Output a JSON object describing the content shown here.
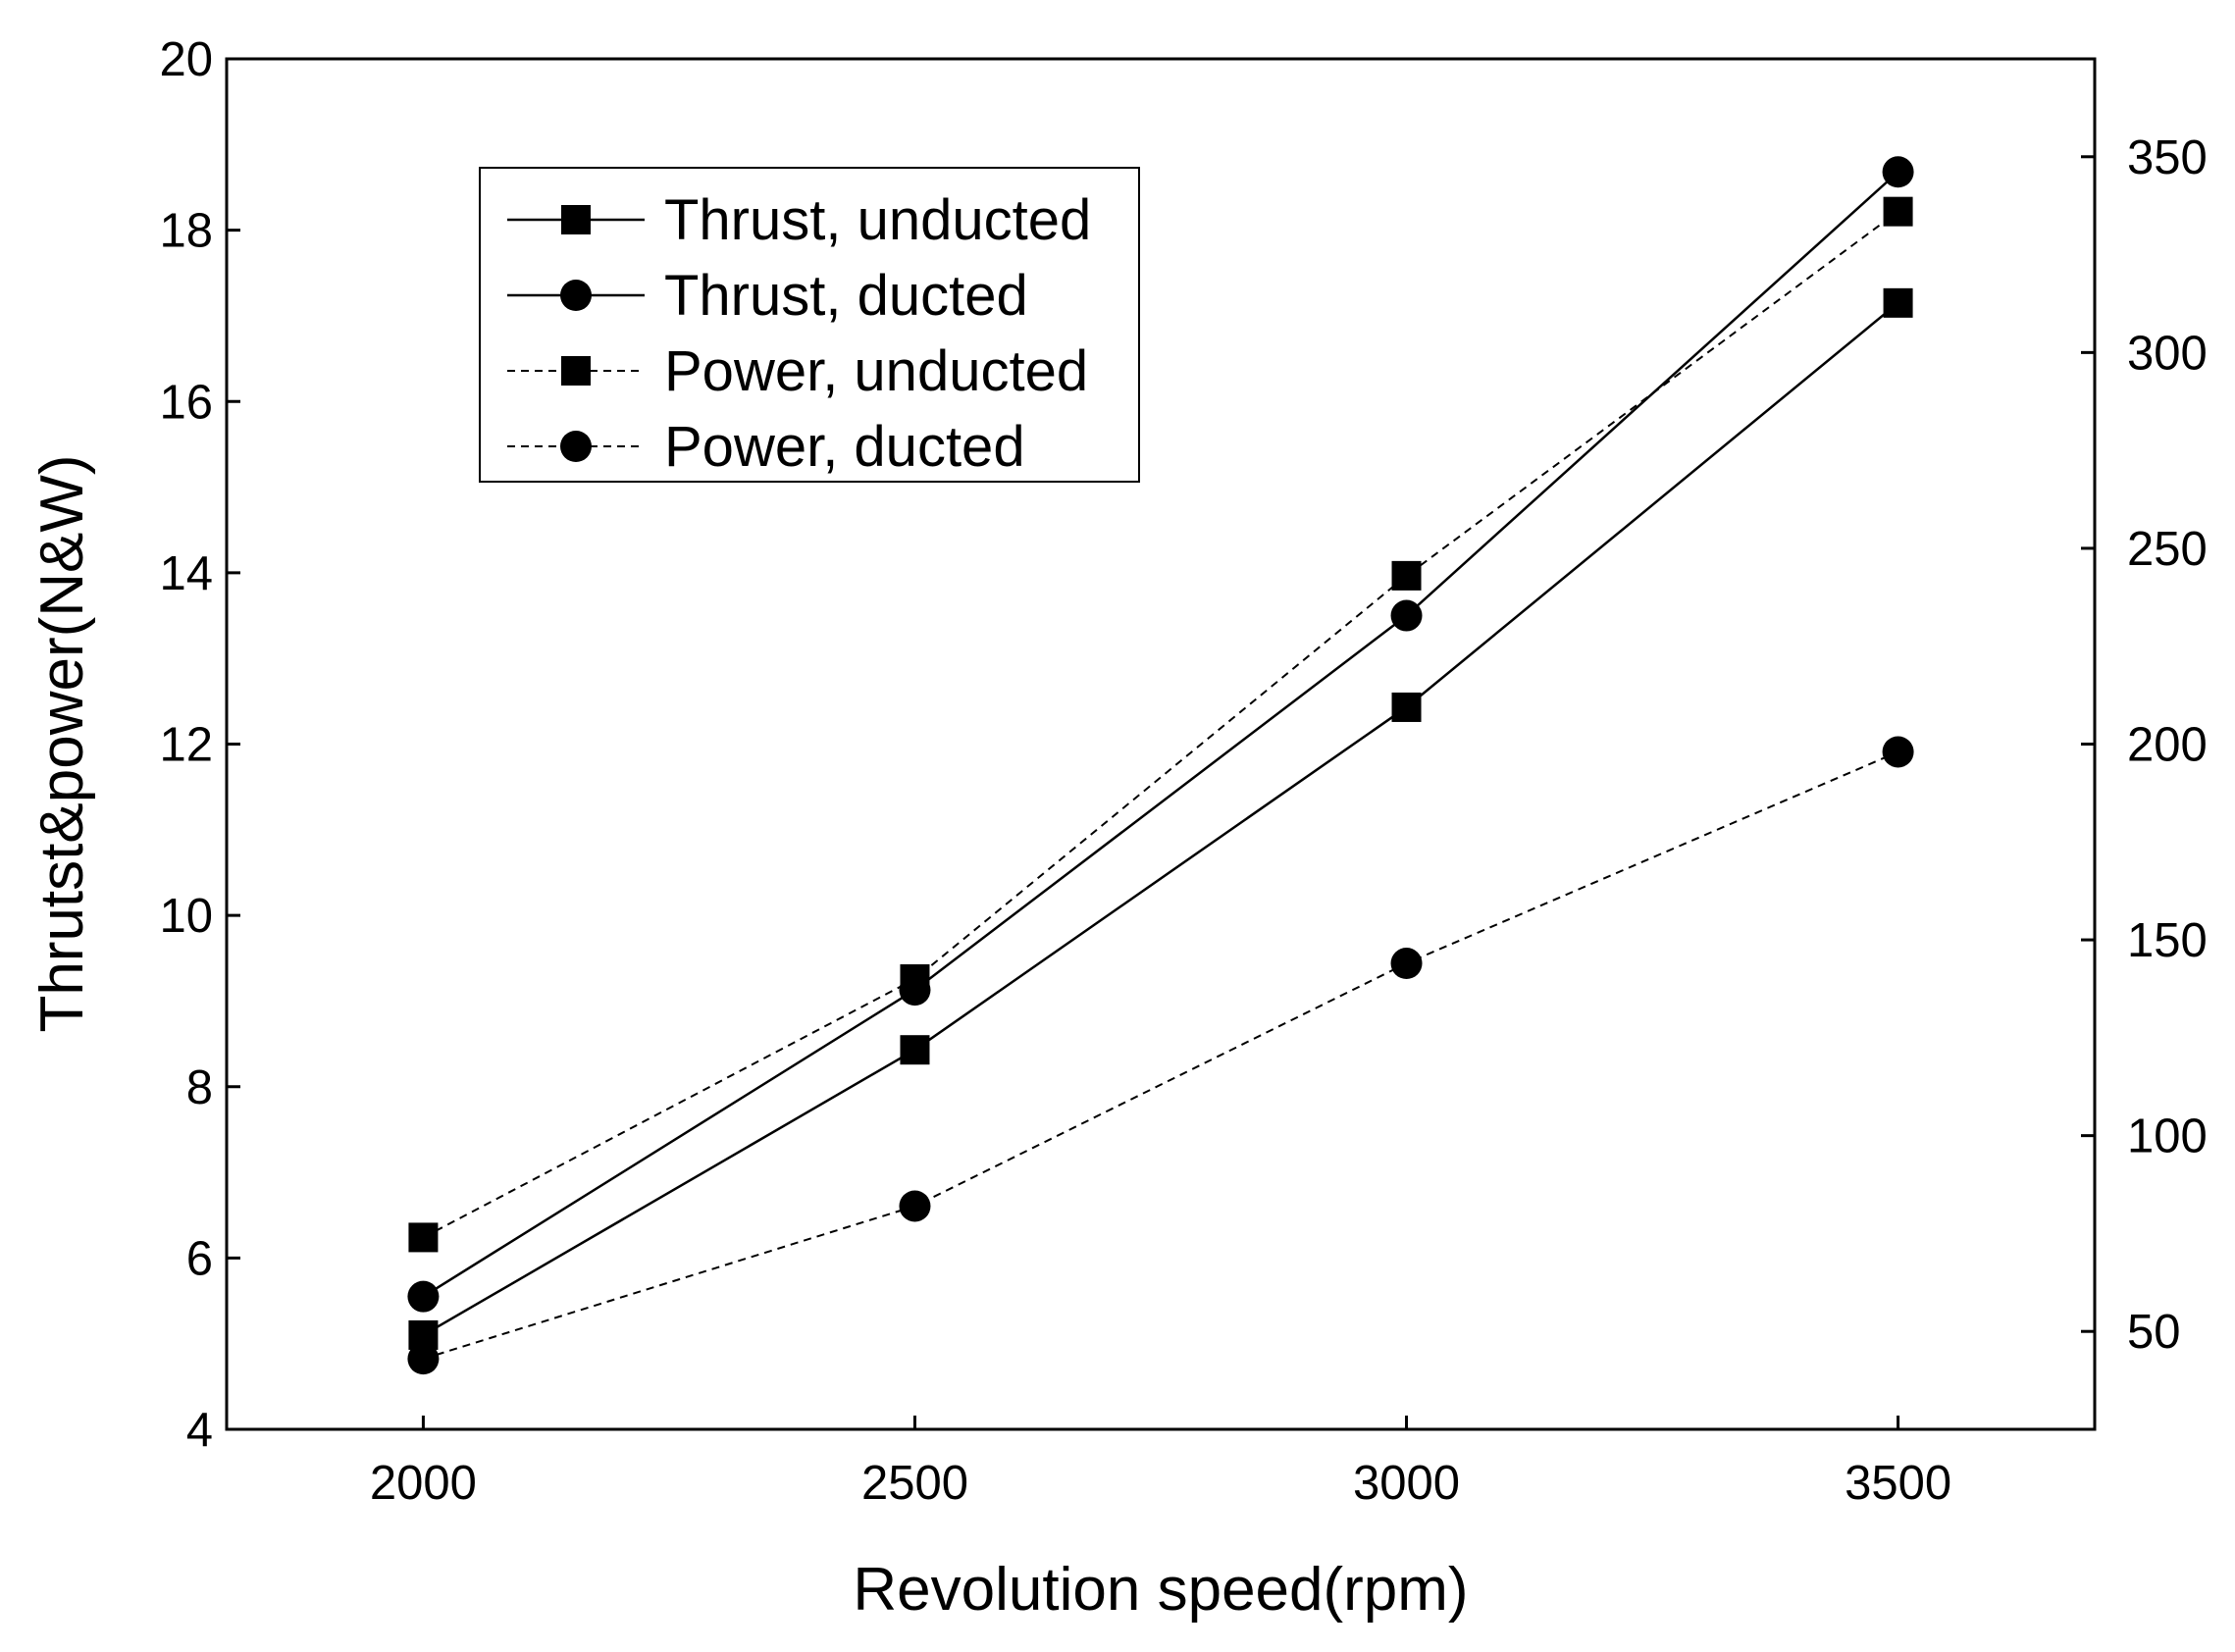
{
  "chart_data": {
    "type": "line",
    "title": "",
    "xlabel": "Revolution speed(rpm)",
    "ylabel": "Thrutst&power(N&W)",
    "x": [
      2000,
      2500,
      3000,
      3500
    ],
    "xticks": [
      "2000",
      "2500",
      "3000",
      "3500"
    ],
    "xlim": [
      1800,
      3700
    ],
    "ylim": [
      4,
      20
    ],
    "yticks": [
      "4",
      "6",
      "8",
      "10",
      "12",
      "14",
      "16",
      "18",
      "20"
    ],
    "y2lim": [
      25,
      375
    ],
    "y2ticks": [
      "50",
      "100",
      "150",
      "200",
      "250",
      "300",
      "350"
    ],
    "legend_position": "top-left",
    "series": [
      {
        "name": "Thrust, unducted",
        "axis": "left",
        "marker": "square",
        "line": "solid",
        "values": [
          5.1,
          8.43,
          12.43,
          17.15
        ]
      },
      {
        "name": "Thrust, ducted",
        "axis": "left",
        "marker": "circle",
        "line": "solid",
        "values": [
          5.55,
          9.13,
          13.5,
          18.68
        ]
      },
      {
        "name": "Power, unducted",
        "axis": "right",
        "marker": "square",
        "line": "dashed",
        "values": [
          74,
          140,
          243,
          336
        ]
      },
      {
        "name": "Power, ducted",
        "axis": "right",
        "marker": "circle",
        "line": "dashed",
        "values": [
          43,
          82,
          144,
          198
        ]
      }
    ]
  }
}
